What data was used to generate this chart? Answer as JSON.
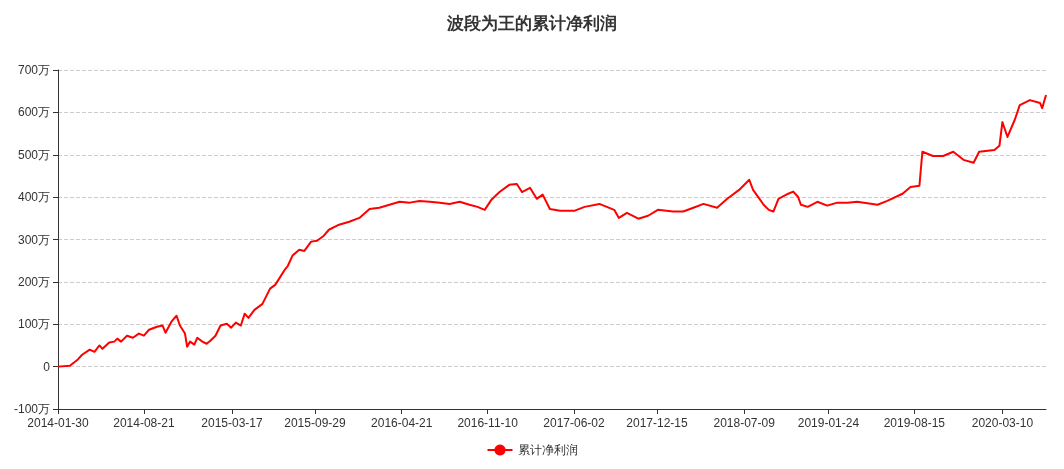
{
  "chart_data": {
    "type": "line",
    "title": "波段为王的累计净利润",
    "legend": "bottom",
    "grid": "y",
    "marker": "none",
    "line_style": "solid",
    "xlim": [
      "2014-01-30",
      "2020-06-21"
    ],
    "xticks": [
      "2014-01-30",
      "2014-08-21",
      "2015-03-17",
      "2015-09-29",
      "2016-04-21",
      "2016-11-10",
      "2017-06-02",
      "2017-12-15",
      "2018-07-09",
      "2019-01-24",
      "2019-08-15",
      "2020-03-10"
    ],
    "ylim": [
      -100,
      700
    ],
    "yticks": [
      {
        "value": -100,
        "label": "-100万"
      },
      0,
      {
        "value": 100,
        "label": "100万"
      },
      {
        "value": 200,
        "label": "200万"
      },
      {
        "value": 300,
        "label": "300万"
      },
      {
        "value": 400,
        "label": "400万"
      },
      {
        "value": 500,
        "label": "500万"
      },
      {
        "value": 600,
        "label": "600万"
      },
      {
        "value": 700,
        "label": "700万"
      }
    ],
    "x": [
      "2014-01-30",
      "2014-02-27",
      "2014-03-18",
      "2014-03-28",
      "2014-04-15",
      "2014-04-26",
      "2014-05-08",
      "2014-05-15",
      "2014-05-31",
      "2014-06-12",
      "2014-06-19",
      "2014-06-28",
      "2014-07-12",
      "2014-07-26",
      "2014-08-09",
      "2014-08-21",
      "2014-09-02",
      "2014-09-21",
      "2014-10-04",
      "2014-10-11",
      "2014-10-25",
      "2014-11-06",
      "2014-11-14",
      "2014-11-26",
      "2014-12-01",
      "2014-12-08",
      "2014-12-18",
      "2014-12-25",
      "2015-01-06",
      "2015-01-16",
      "2015-01-25",
      "2015-02-06",
      "2015-02-18",
      "2015-03-05",
      "2015-03-15",
      "2015-03-26",
      "2015-04-07",
      "2015-04-16",
      "2015-04-25",
      "2015-05-09",
      "2015-05-28",
      "2015-06-15",
      "2015-06-27",
      "2015-07-08",
      "2015-07-20",
      "2015-07-27",
      "2015-08-07",
      "2015-08-23",
      "2015-09-04",
      "2015-09-20",
      "2015-10-04",
      "2015-10-20",
      "2015-11-01",
      "2015-11-25",
      "2015-12-19",
      "2016-01-12",
      "2016-02-05",
      "2016-02-28",
      "2016-03-23",
      "2016-04-16",
      "2016-05-10",
      "2016-06-02",
      "2016-06-26",
      "2016-07-20",
      "2016-08-12",
      "2016-09-05",
      "2016-09-28",
      "2016-10-17",
      "2016-11-03",
      "2016-11-19",
      "2016-12-08",
      "2016-12-31",
      "2017-01-18",
      "2017-01-30",
      "2017-02-18",
      "2017-03-06",
      "2017-03-20",
      "2017-04-06",
      "2017-04-30",
      "2017-06-04",
      "2017-06-27",
      "2017-08-01",
      "2017-09-05",
      "2017-09-16",
      "2017-10-05",
      "2017-11-01",
      "2017-11-24",
      "2017-12-17",
      "2018-01-22",
      "2018-02-15",
      "2018-03-11",
      "2018-04-04",
      "2018-05-06",
      "2018-05-30",
      "2018-06-27",
      "2018-07-21",
      "2018-07-30",
      "2018-08-24",
      "2018-09-05",
      "2018-09-16",
      "2018-09-28",
      "2018-10-21",
      "2018-11-02",
      "2018-11-13",
      "2018-11-20",
      "2018-12-06",
      "2018-12-29",
      "2019-01-21",
      "2019-02-14",
      "2019-03-10",
      "2019-04-02",
      "2019-05-20",
      "2019-06-12",
      "2019-07-18",
      "2019-08-06",
      "2019-08-27",
      "2019-09-03",
      "2019-09-28",
      "2019-10-22",
      "2019-11-15",
      "2019-12-09",
      "2020-01-02",
      "2020-01-15",
      "2020-02-20",
      "2020-03-03",
      "2020-03-10",
      "2020-03-22",
      "2020-04-08",
      "2020-04-20",
      "2020-05-14",
      "2020-06-07",
      "2020-06-12",
      "2020-06-21"
    ],
    "series": [
      {
        "name": "累计净利润",
        "color": "#ff0000",
        "values": [
          0,
          2,
          17,
          28,
          40,
          35,
          50,
          42,
          57,
          59,
          66,
          59,
          73,
          68,
          78,
          73,
          87,
          94,
          97,
          80,
          106,
          120,
          97,
          78,
          47,
          59,
          52,
          68,
          59,
          54,
          61,
          73,
          97,
          101,
          92,
          104,
          97,
          125,
          115,
          134,
          148,
          184,
          193,
          210,
          229,
          238,
          262,
          276,
          273,
          295,
          297,
          309,
          323,
          335,
          342,
          351,
          372,
          375,
          382,
          389,
          387,
          391,
          389,
          387,
          384,
          389,
          382,
          377,
          370,
          394,
          412,
          429,
          431,
          412,
          422,
          396,
          406,
          372,
          368,
          368,
          377,
          384,
          370,
          351,
          363,
          349,
          356,
          370,
          366,
          366,
          375,
          384,
          375,
          396,
          417,
          441,
          417,
          382,
          370,
          366,
          396,
          408,
          413,
          401,
          382,
          377,
          389,
          380,
          387,
          387,
          389,
          382,
          391,
          408,
          424,
          427,
          507,
          497,
          497,
          507,
          488,
          481,
          507,
          511,
          521,
          577,
          542,
          582,
          617,
          629,
          622,
          610,
          641
        ]
      }
    ]
  }
}
